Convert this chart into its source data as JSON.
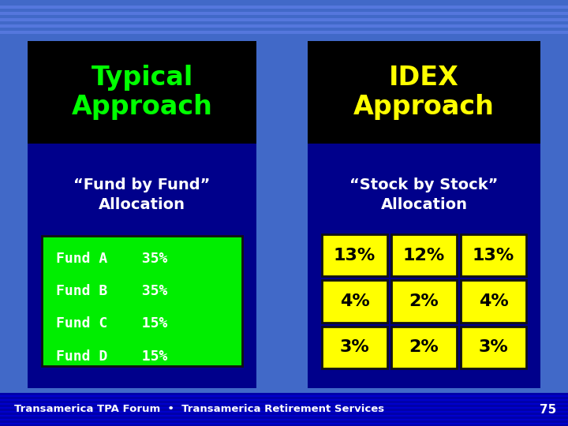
{
  "bg_color": "#4169c8",
  "bg_stripe_color": "#5577dd",
  "footer_bg": "#0000aa",
  "footer_text": "Transamerica TPA Forum  •  Transamerica Retirement Services",
  "footer_page": "75",
  "left_panel": {
    "header_text": "Typical\nApproach",
    "header_color": "#00ff00",
    "header_bg": "#000000",
    "body_bg": "#00008b",
    "sub_label": "“Fund by Fund”\nAllocation",
    "sub_label_color": "#ffffff",
    "fund_box_bg": "#00ee00",
    "fund_box_border": "#111111",
    "funds": [
      "Fund A    35%",
      "Fund B    35%",
      "Fund C    15%",
      "Fund D    15%"
    ],
    "fund_text_color": "#ffffff"
  },
  "right_panel": {
    "header_text": "IDEX\nApproach",
    "header_color": "#ffff00",
    "header_bg": "#000000",
    "body_bg": "#00008b",
    "sub_label": "“Stock by Stock”\nAllocation",
    "sub_label_color": "#ffffff",
    "grid_bg": "#ffff00",
    "grid_border": "#111111",
    "grid_text_color": "#000000",
    "grid_values": [
      [
        "13%",
        "12%",
        "13%"
      ],
      [
        "4%",
        "2%",
        "4%"
      ],
      [
        "3%",
        "2%",
        "3%"
      ]
    ]
  }
}
